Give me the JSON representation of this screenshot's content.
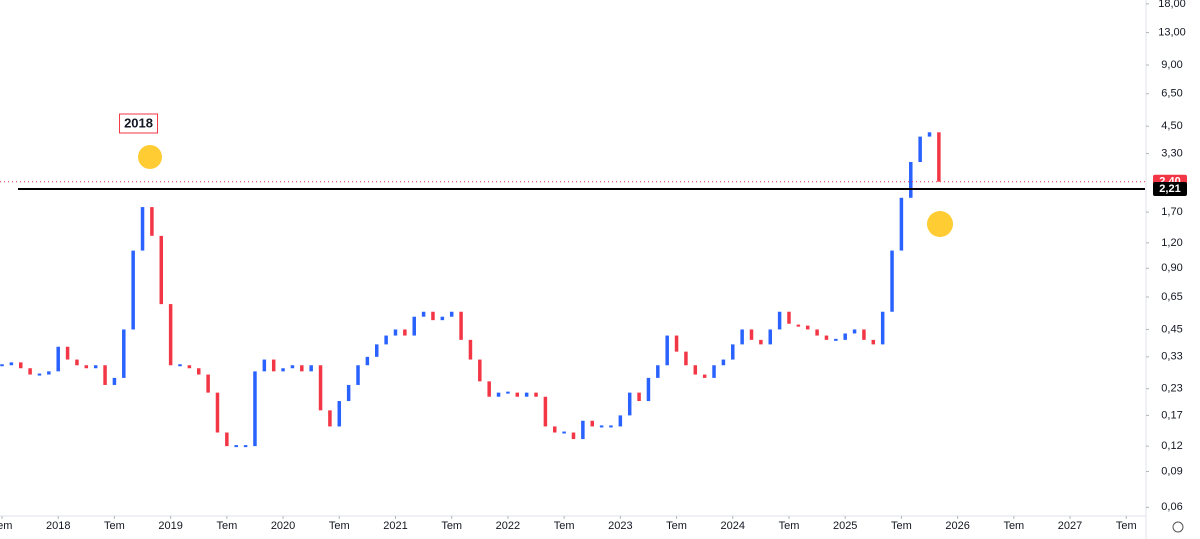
{
  "chart_data": {
    "type": "line",
    "log_scale": true,
    "grid": false,
    "up_color": "#2962ff",
    "down_color": "#f23645",
    "x": [
      "2017-07",
      "2017-08",
      "2017-09",
      "2017-10",
      "2017-11",
      "2017-12",
      "2018-01",
      "2018-02",
      "2018-03",
      "2018-04",
      "2018-05",
      "2018-06",
      "2018-07",
      "2018-08",
      "2018-09",
      "2018-10",
      "2018-11",
      "2018-12",
      "2019-01",
      "2019-02",
      "2019-03",
      "2019-04",
      "2019-05",
      "2019-06",
      "2019-07",
      "2019-08",
      "2019-09",
      "2019-10",
      "2019-11",
      "2019-12",
      "2020-01",
      "2020-02",
      "2020-03",
      "2020-04",
      "2020-05",
      "2020-06",
      "2020-07",
      "2020-08",
      "2020-09",
      "2020-10",
      "2020-11",
      "2020-12",
      "2021-01",
      "2021-02",
      "2021-03",
      "2021-04",
      "2021-05",
      "2021-06",
      "2021-07",
      "2021-08",
      "2021-09",
      "2021-10",
      "2021-11",
      "2021-12",
      "2022-01",
      "2022-02",
      "2022-03",
      "2022-04",
      "2022-05",
      "2022-06",
      "2022-07",
      "2022-08",
      "2022-09",
      "2022-10",
      "2022-11",
      "2022-12",
      "2023-01",
      "2023-02",
      "2023-03",
      "2023-04",
      "2023-05",
      "2023-06",
      "2023-07",
      "2023-08",
      "2023-09",
      "2023-10",
      "2023-11",
      "2023-12",
      "2024-01",
      "2024-02",
      "2024-03",
      "2024-04",
      "2024-05",
      "2024-06",
      "2024-07",
      "2024-08",
      "2024-09",
      "2024-10",
      "2024-11",
      "2024-12",
      "2025-01",
      "2025-02",
      "2025-03",
      "2025-04",
      "2025-05",
      "2025-06",
      "2025-07",
      "2025-08",
      "2025-09",
      "2025-10",
      "2025-11"
    ],
    "values": [
      0.3,
      0.31,
      0.29,
      0.27,
      0.27,
      0.28,
      0.37,
      0.32,
      0.3,
      0.29,
      0.3,
      0.24,
      0.26,
      0.45,
      1.1,
      1.8,
      1.3,
      0.6,
      0.3,
      0.3,
      0.29,
      0.27,
      0.22,
      0.14,
      0.12,
      0.12,
      0.12,
      0.28,
      0.32,
      0.28,
      0.29,
      0.3,
      0.28,
      0.3,
      0.18,
      0.15,
      0.2,
      0.24,
      0.3,
      0.33,
      0.38,
      0.42,
      0.45,
      0.42,
      0.52,
      0.55,
      0.5,
      0.52,
      0.55,
      0.4,
      0.32,
      0.25,
      0.21,
      0.22,
      0.22,
      0.21,
      0.22,
      0.21,
      0.15,
      0.14,
      0.14,
      0.13,
      0.16,
      0.15,
      0.15,
      0.15,
      0.17,
      0.22,
      0.2,
      0.26,
      0.3,
      0.42,
      0.35,
      0.3,
      0.27,
      0.26,
      0.3,
      0.32,
      0.38,
      0.45,
      0.4,
      0.38,
      0.45,
      0.55,
      0.48,
      0.47,
      0.45,
      0.42,
      0.4,
      0.4,
      0.43,
      0.45,
      0.4,
      0.38,
      0.55,
      1.1,
      2.0,
      3.0,
      4.0,
      4.2,
      2.4
    ],
    "xlim": [
      "2017-07",
      "2027-09"
    ],
    "xticks": [
      {
        "value": "2017-07",
        "label": "Tem"
      },
      {
        "value": "2018-01",
        "label": "2018"
      },
      {
        "value": "2018-07",
        "label": "Tem"
      },
      {
        "value": "2019-01",
        "label": "2019"
      },
      {
        "value": "2019-07",
        "label": "Tem"
      },
      {
        "value": "2020-01",
        "label": "2020"
      },
      {
        "value": "2020-07",
        "label": "Tem"
      },
      {
        "value": "2021-01",
        "label": "2021"
      },
      {
        "value": "2021-07",
        "label": "Tem"
      },
      {
        "value": "2022-01",
        "label": "2022"
      },
      {
        "value": "2022-07",
        "label": "Tem"
      },
      {
        "value": "2023-01",
        "label": "2023"
      },
      {
        "value": "2023-07",
        "label": "Tem"
      },
      {
        "value": "2024-01",
        "label": "2024"
      },
      {
        "value": "2024-07",
        "label": "Tem"
      },
      {
        "value": "2025-01",
        "label": "2025"
      },
      {
        "value": "2025-07",
        "label": "Tem"
      },
      {
        "value": "2026-01",
        "label": "2026"
      },
      {
        "value": "2026-07",
        "label": "Tem"
      },
      {
        "value": "2027-01",
        "label": "2027"
      },
      {
        "value": "2027-07",
        "label": "Tem"
      }
    ],
    "ylim": [
      0.055,
      18.8
    ],
    "yticks": [
      {
        "value": 0.06,
        "label": "0,06"
      },
      {
        "value": 0.09,
        "label": "0,09"
      },
      {
        "value": 0.12,
        "label": "0,12"
      },
      {
        "value": 0.17,
        "label": "0,17"
      },
      {
        "value": 0.23,
        "label": "0,23"
      },
      {
        "value": 0.33,
        "label": "0,33"
      },
      {
        "value": 0.45,
        "label": "0,45"
      },
      {
        "value": 0.65,
        "label": "0,65"
      },
      {
        "value": 0.9,
        "label": "0,90"
      },
      {
        "value": 1.2,
        "label": "1,20"
      },
      {
        "value": 1.7,
        "label": "1,70"
      },
      {
        "value": 3.3,
        "label": "3,30"
      },
      {
        "value": 4.5,
        "label": "4,50"
      },
      {
        "value": 6.5,
        "label": "6,50"
      },
      {
        "value": 9,
        "label": "9,00"
      },
      {
        "value": 13,
        "label": "13,00"
      },
      {
        "value": 18,
        "label": "18,00"
      }
    ],
    "price_labels": [
      {
        "value": 2.4,
        "label": "2,40",
        "color": "#f23645",
        "line": "dotted"
      },
      {
        "value": 2.21,
        "label": "2,21",
        "color": "#000000",
        "line": "solid"
      }
    ],
    "annotations": [
      {
        "text": "2018",
        "x": "2018-10"
      }
    ]
  }
}
